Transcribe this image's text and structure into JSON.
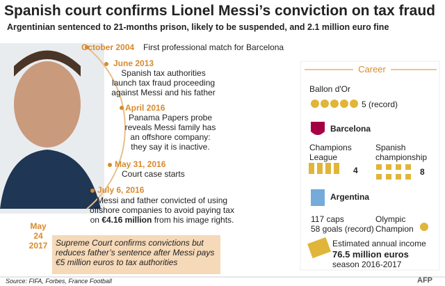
{
  "header": {
    "title": "Spanish court confirms Lionel Messi’s conviction on tax fraud",
    "subtitle": "Argentinian sentenced to 21-months prison, likely to be suspended, and 2.1 million euro fine"
  },
  "timeline": [
    {
      "date": "October 2004",
      "text": "First professional match for Barcelona"
    },
    {
      "date": "June 2013",
      "text": "Spanish tax authorities launch tax fraud proceeding against Messi and his father"
    },
    {
      "date": "April 2016",
      "text": "Panama Papers probe reveals Messi family has an offshore company: they say it is inactive."
    },
    {
      "date": "May 31, 2016",
      "text": "Court case starts"
    },
    {
      "date": "July 6, 2016",
      "text_before": "Messi and father convicted of using offshore companies to avoid paying tax on",
      "text_bold": "€4.16 million",
      "text_after": "from his image rights."
    },
    {
      "date": "May 24 2017",
      "text": "Supreme Court confirms convictions but reduces father’s sentence after Messi pays €5 million euros to tax authorities"
    }
  ],
  "career": {
    "heading": "Career",
    "ballon_dor": {
      "label": "Ballon d'Or",
      "value": "5 (record)"
    },
    "barcelona": {
      "label": "Barcelona",
      "champions_league": {
        "label": "Champions League",
        "value": "4"
      },
      "spanish_championship": {
        "label": "Spanish championship",
        "value": "8"
      }
    },
    "argentina": {
      "label": "Argentina",
      "caps": "117 caps",
      "goals": "58 goals (record)",
      "olympic": "Olympic Champion"
    },
    "income": {
      "label": "Estimated annual income",
      "value": "76.5 million euros",
      "season": "season 2016-2017"
    }
  },
  "footer": {
    "source": "Source: FIFA, Forbes, France Football",
    "credit": "AFP"
  }
}
